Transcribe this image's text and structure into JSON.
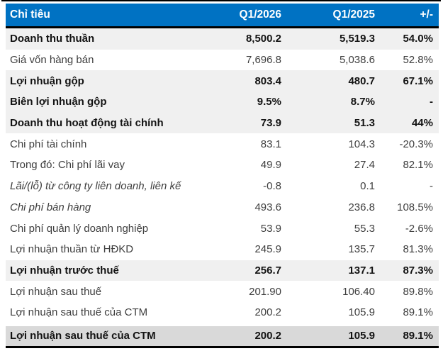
{
  "chart_data": {
    "type": "table",
    "title": "Ket qua kinh doanh quy 1 (bang so lieu tai chinh)",
    "columns": [
      "Chỉ tiêu",
      "Q1/2026",
      "Q1/2025",
      "+/-"
    ],
    "rows": [
      {
        "label": "Doanh thu thuần",
        "q1_2026": "8,500.2",
        "q1_2025": "5,519.3",
        "change": "54.0%",
        "emphasis": "bold"
      },
      {
        "label": "Giá vốn hàng bán",
        "q1_2026": "7,696.8",
        "q1_2025": "5,038.6",
        "change": "52.8%",
        "emphasis": "normal"
      },
      {
        "label": "Lợi nhuận gộp",
        "q1_2026": "803.4",
        "q1_2025": "480.7",
        "change": "67.1%",
        "emphasis": "bold"
      },
      {
        "label": "Biên lợi nhuận gộp",
        "q1_2026": "9.5%",
        "q1_2025": "8.7%",
        "change": "-",
        "emphasis": "bold"
      },
      {
        "label": "Doanh thu hoạt động tài chính",
        "q1_2026": "73.9",
        "q1_2025": "51.3",
        "change": "44%",
        "emphasis": "bold"
      },
      {
        "label": "Chi phí tài chính",
        "q1_2026": "83.1",
        "q1_2025": "104.3",
        "change": "-20.3%",
        "emphasis": "normal"
      },
      {
        "label": "Trong đó: Chi phí lãi vay",
        "q1_2026": "49.9",
        "q1_2025": "27.4",
        "change": "82.1%",
        "emphasis": "normal"
      },
      {
        "label": "Lãi/(lỗ) từ công ty liên doanh, liên kế",
        "q1_2026": "-0.8",
        "q1_2025": "0.1",
        "change": "-",
        "emphasis": "italic"
      },
      {
        "label": "Chi phí bán hàng",
        "q1_2026": "493.6",
        "q1_2025": "236.8",
        "change": "108.5%",
        "emphasis": "italic"
      },
      {
        "label": "Chi phí quản lý doanh nghiệp",
        "q1_2026": "53.9",
        "q1_2025": "55.3",
        "change": "-2.6%",
        "emphasis": "normal"
      },
      {
        "label": "Lợi nhuận thuần từ HĐKD",
        "q1_2026": "245.9",
        "q1_2025": "135.7",
        "change": "81.3%",
        "emphasis": "normal"
      },
      {
        "label": "Lợi nhuận trước thuế",
        "q1_2026": "256.7",
        "q1_2025": "137.1",
        "change": "87.3%",
        "emphasis": "bold"
      },
      {
        "label": "Lợi nhuận sau thuế",
        "q1_2026": "201.90",
        "q1_2025": "106.40",
        "change": "89.8%",
        "emphasis": "normal"
      },
      {
        "label": "Lợi nhuận sau thuế của CTM",
        "q1_2026": "200.2",
        "q1_2025": "105.9",
        "change": "89.1%",
        "emphasis": "normal"
      },
      {
        "label": "Lợi nhuận sau thuế của CTM",
        "q1_2026": "200.2",
        "q1_2025": "105.9",
        "change": "89.1%",
        "emphasis": "bold-final"
      }
    ],
    "layout": {
      "header_bg": "#0072c3",
      "header_text": "#ffffff",
      "highlight_row_bg": "#f0f0f0",
      "final_row_bg": "#d9d9d9",
      "rule_color": "#000000",
      "body_text": "#3e3e3e",
      "bold_text": "#131313"
    }
  }
}
